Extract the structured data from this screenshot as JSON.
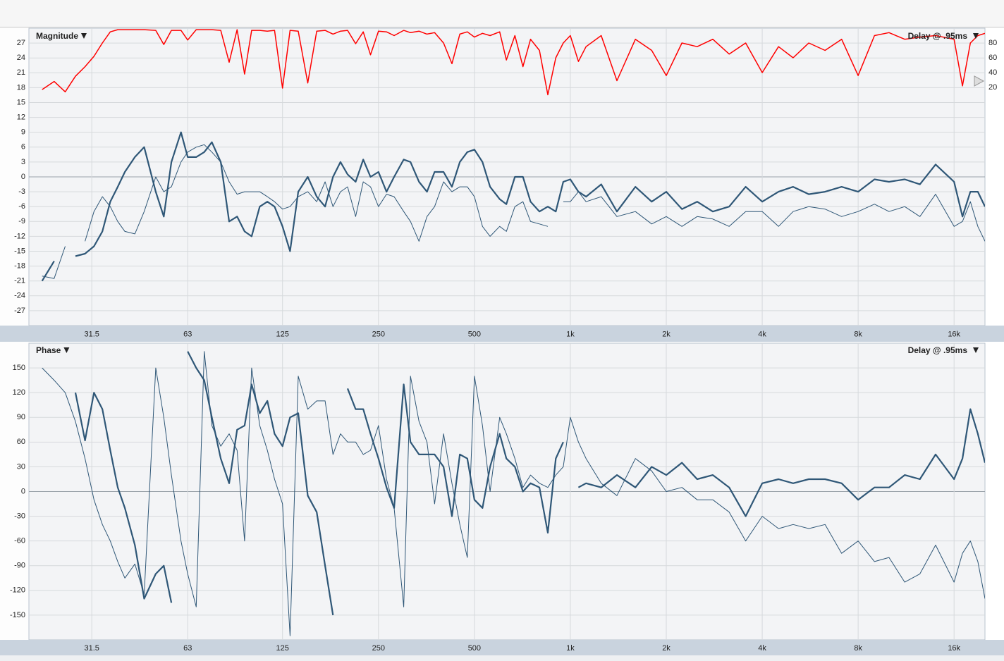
{
  "chart_data": [
    {
      "type": "line",
      "title": "Magnitude",
      "annotation": "Delay @ .95ms",
      "xscale": "log",
      "grid": true,
      "xlim": [
        20,
        20000
      ],
      "ylim": [
        -30,
        30
      ],
      "y2lim": [
        -302,
        100
      ],
      "xticks": [
        31.5,
        63,
        125,
        250,
        500,
        {
          "value": 1000,
          "label": "1k"
        },
        {
          "value": 2000,
          "label": "2k"
        },
        {
          "value": 4000,
          "label": "4k"
        },
        {
          "value": 8000,
          "label": "8k"
        },
        {
          "value": 16000,
          "label": "16k"
        }
      ],
      "yticks": [
        -27,
        -24,
        -21,
        -18,
        -15,
        -12,
        -9,
        -6,
        -3,
        0,
        3,
        6,
        9,
        12,
        15,
        18,
        21,
        24,
        27
      ],
      "y2ticks": [
        20,
        40,
        60,
        80
      ],
      "x": [
        22,
        24,
        26,
        28,
        30,
        32,
        34,
        36,
        38,
        40,
        43,
        46,
        50,
        53,
        56,
        60,
        63,
        67,
        71,
        75,
        80,
        85,
        90,
        95,
        100,
        106,
        112,
        118,
        125,
        132,
        140,
        150,
        160,
        170,
        180,
        190,
        200,
        212,
        224,
        236,
        250,
        265,
        280,
        300,
        315,
        335,
        355,
        375,
        400,
        425,
        450,
        475,
        500,
        530,
        560,
        600,
        630,
        670,
        710,
        750,
        800,
        850,
        900,
        950,
        1000,
        1060,
        1120,
        1250,
        1400,
        1600,
        1800,
        2000,
        2240,
        2500,
        2800,
        3150,
        3550,
        4000,
        4500,
        5000,
        5600,
        6300,
        7100,
        8000,
        9000,
        10000,
        11200,
        12500,
        14000,
        16000,
        17000,
        18000,
        19000,
        20000
      ],
      "series": [
        {
          "color": "#ff0000",
          "line_width": 1.5,
          "axis": "y2",
          "values": [
            17,
            28,
            14,
            35,
            48,
            62,
            80,
            95,
            98,
            98,
            98,
            98,
            97,
            78,
            97,
            97,
            84,
            98,
            98,
            98,
            97,
            54,
            98,
            38,
            97,
            97,
            96,
            97,
            19,
            97,
            96,
            26,
            96,
            97,
            92,
            96,
            97,
            79,
            95,
            64,
            96,
            95,
            90,
            97,
            94,
            96,
            92,
            94,
            80,
            52,
            92,
            95,
            88,
            93,
            90,
            95,
            57,
            90,
            48,
            85,
            70,
            10,
            60,
            80,
            90,
            55,
            75,
            90,
            29,
            85,
            70,
            36,
            80,
            75,
            85,
            65,
            80,
            40,
            75,
            60,
            80,
            70,
            85,
            36,
            90,
            94,
            85,
            88,
            90,
            85,
            22,
            80,
            90,
            93
          ]
        },
        {
          "color": "#2f5777",
          "line_width": 1,
          "values": [
            -20,
            -20.5,
            -14,
            null,
            -13,
            -7,
            -4,
            -6,
            -9,
            -11,
            -11.5,
            -7,
            0,
            -3,
            -2,
            3,
            5,
            6,
            6.5,
            5,
            3,
            -1,
            -3.5,
            -3,
            -3,
            -3,
            -4,
            -5,
            -6.5,
            -6,
            -4,
            -3,
            -5,
            -1,
            -6,
            -3,
            -2,
            -8,
            -1,
            -2,
            -6,
            -3.5,
            -4,
            -7,
            -9,
            -13,
            -8,
            -6,
            -1,
            -3,
            -2,
            -2,
            -4,
            -10,
            -12,
            -10,
            -11,
            -6,
            -5,
            -9,
            -9.5,
            -10,
            null,
            -5,
            -5,
            -3,
            -5,
            -4,
            -8,
            -7,
            -9.5,
            -8,
            -10,
            -8,
            -8.5,
            -10,
            -7,
            -7,
            -10,
            -7,
            -6,
            -6.5,
            -8,
            -7,
            -5.5,
            -7,
            -6,
            -8,
            -3.5,
            -10,
            -9,
            -5,
            -10,
            -13
          ]
        },
        {
          "color": "#2f5777",
          "line_width": 2.2,
          "values": [
            -21,
            -17,
            null,
            -16,
            -15.5,
            -14,
            -11,
            -5,
            -2,
            1,
            4,
            6,
            -3,
            -8,
            3,
            9,
            4,
            4,
            5,
            7,
            3,
            -9,
            -8,
            -11,
            -12,
            -6,
            -5,
            -6,
            -10,
            -15,
            -3,
            0,
            -4,
            -6,
            0,
            3,
            0.5,
            -1,
            3.5,
            0,
            1,
            -3,
            0,
            3.5,
            3,
            -1,
            -3,
            1,
            1,
            -2,
            3,
            5,
            5.5,
            3,
            -2,
            -4.5,
            -5.5,
            0,
            0,
            -5,
            -7,
            -6,
            -7,
            -1,
            -0.5,
            -3,
            -4,
            -1.5,
            -7,
            -2,
            -5,
            -3,
            -6.5,
            -5,
            -7,
            -6,
            -2,
            -5,
            -3,
            -2,
            -3.5,
            -3,
            -2,
            -3,
            -0.5,
            -1,
            -0.5,
            -1.5,
            2.5,
            -1,
            -8,
            -3,
            -3,
            -6
          ]
        }
      ]
    },
    {
      "type": "line",
      "title": "Phase",
      "annotation": "Delay @ .95ms",
      "xscale": "log",
      "grid": true,
      "xlim": [
        20,
        20000
      ],
      "ylim": [
        -180,
        180
      ],
      "xticks": [
        31.5,
        63,
        125,
        250,
        500,
        {
          "value": 1000,
          "label": "1k"
        },
        {
          "value": 2000,
          "label": "2k"
        },
        {
          "value": 4000,
          "label": "4k"
        },
        {
          "value": 8000,
          "label": "8k"
        },
        {
          "value": 16000,
          "label": "16k"
        }
      ],
      "yticks": [
        -150,
        -120,
        -90,
        -60,
        -30,
        0,
        30,
        60,
        90,
        120,
        150
      ],
      "x": [
        22,
        24,
        26,
        28,
        30,
        32,
        34,
        36,
        38,
        40,
        43,
        46,
        50,
        53,
        56,
        60,
        63,
        67,
        71,
        75,
        80,
        85,
        90,
        95,
        100,
        106,
        112,
        118,
        125,
        132,
        140,
        150,
        160,
        170,
        180,
        190,
        200,
        212,
        224,
        236,
        250,
        265,
        280,
        300,
        315,
        335,
        355,
        375,
        400,
        425,
        450,
        475,
        500,
        530,
        560,
        600,
        630,
        670,
        710,
        750,
        800,
        850,
        900,
        950,
        1000,
        1060,
        1120,
        1250,
        1400,
        1600,
        1800,
        2000,
        2240,
        2500,
        2800,
        3150,
        3550,
        4000,
        4500,
        5000,
        5600,
        6300,
        7100,
        8000,
        9000,
        10000,
        11200,
        12500,
        14000,
        16000,
        17000,
        18000,
        19000,
        20000
      ],
      "series": [
        {
          "color": "#2f5777",
          "line_width": 1,
          "values": [
            150,
            135,
            120,
            85,
            40,
            -10,
            -40,
            -60,
            -85,
            -105,
            -88,
            -125,
            150,
            90,
            20,
            -60,
            -100,
            -140,
            170,
            80,
            55,
            70,
            50,
            -60,
            150,
            80,
            50,
            15,
            -15,
            -175,
            140,
            100,
            110,
            110,
            45,
            70,
            60,
            60,
            45,
            50,
            80,
            15,
            -20,
            -140,
            140,
            85,
            60,
            -15,
            70,
            10,
            -40,
            -80,
            140,
            80,
            0,
            90,
            70,
            40,
            5,
            20,
            10,
            5,
            20,
            30,
            90,
            60,
            40,
            10,
            -5,
            40,
            25,
            0,
            5,
            -10,
            -10,
            -25,
            -60,
            -30,
            -45,
            -40,
            -45,
            -40,
            -75,
            -60,
            -85,
            -80,
            -110,
            -100,
            -65,
            -110,
            -75,
            -60,
            -85,
            -130
          ]
        },
        {
          "color": "#2f5777",
          "line_width": 2.2,
          "values": [
            null,
            null,
            null,
            120,
            62,
            120,
            100,
            50,
            5,
            -20,
            -65,
            -130,
            -100,
            -90,
            -135,
            null,
            170,
            150,
            135,
            90,
            40,
            10,
            75,
            80,
            130,
            95,
            110,
            70,
            55,
            90,
            95,
            -5,
            -25,
            -90,
            -150,
            null,
            125,
            100,
            100,
            70,
            40,
            5,
            -20,
            130,
            60,
            45,
            45,
            45,
            30,
            -30,
            45,
            40,
            -10,
            -20,
            30,
            70,
            40,
            30,
            0,
            10,
            5,
            -50,
            40,
            60,
            null,
            5,
            10,
            5,
            20,
            5,
            30,
            20,
            35,
            15,
            20,
            5,
            -30,
            10,
            15,
            10,
            15,
            15,
            10,
            -10,
            5,
            5,
            20,
            15,
            45,
            15,
            40,
            100,
            70,
            35
          ]
        }
      ]
    }
  ]
}
